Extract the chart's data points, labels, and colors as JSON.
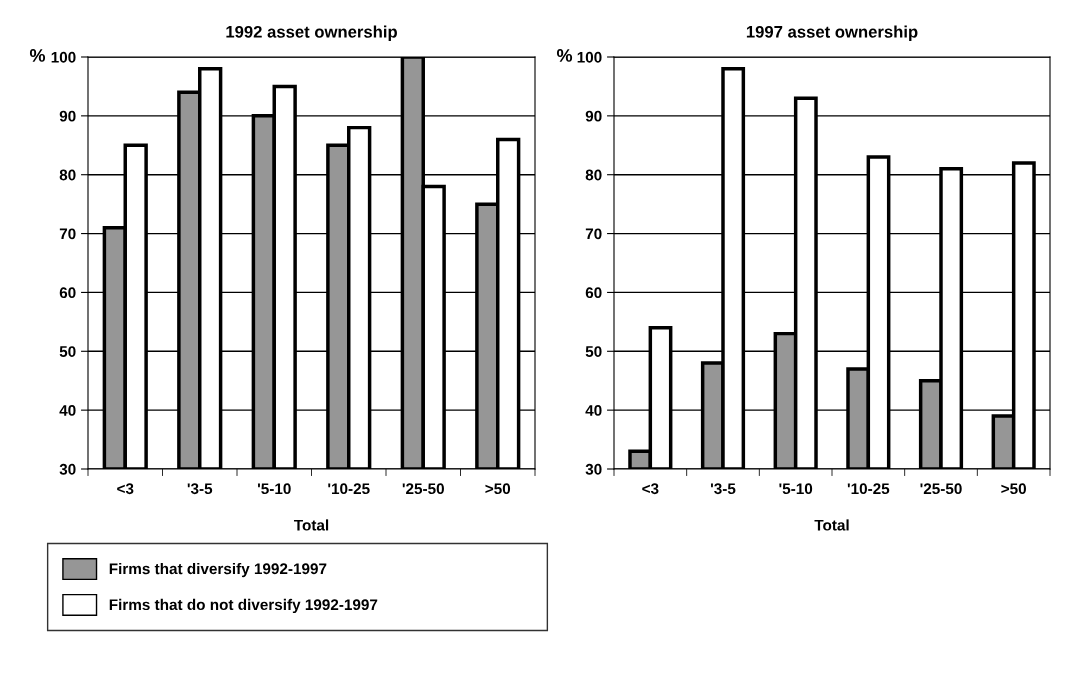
{
  "chart_data": [
    {
      "type": "bar",
      "title": "1992 asset ownership",
      "xlabel": "Total",
      "ylabel": "%",
      "categories": [
        "<3",
        "'3-5",
        "'5-10",
        "'10-25",
        "'25-50",
        ">50"
      ],
      "series": [
        {
          "name": "Firms that diversify 1992-1997",
          "color": "#969696",
          "values": [
            71,
            94,
            90,
            85,
            100,
            75
          ]
        },
        {
          "name": "Firms that do not diversify 1992-1997",
          "color": "#ffffff",
          "values": [
            85,
            98,
            95,
            88,
            78,
            86
          ]
        }
      ],
      "ylim": [
        30,
        100
      ],
      "yticks": [
        30,
        40,
        50,
        60,
        70,
        80,
        90,
        100
      ],
      "grid": "y",
      "legend": "bottom"
    },
    {
      "type": "bar",
      "title": "1997 asset ownership",
      "xlabel": "Total",
      "ylabel": "%",
      "categories": [
        "<3",
        "'3-5",
        "'5-10",
        "'10-25",
        "'25-50",
        ">50"
      ],
      "series": [
        {
          "color": "#969696",
          "values": [
            33,
            48,
            53,
            47,
            45,
            39
          ]
        },
        {
          "color": "#ffffff",
          "values": [
            54,
            98,
            93,
            83,
            81,
            82
          ]
        }
      ],
      "ylim": [
        30,
        100
      ],
      "yticks": [
        30,
        40,
        50,
        60,
        70,
        80,
        90,
        100
      ],
      "grid": "y"
    }
  ]
}
